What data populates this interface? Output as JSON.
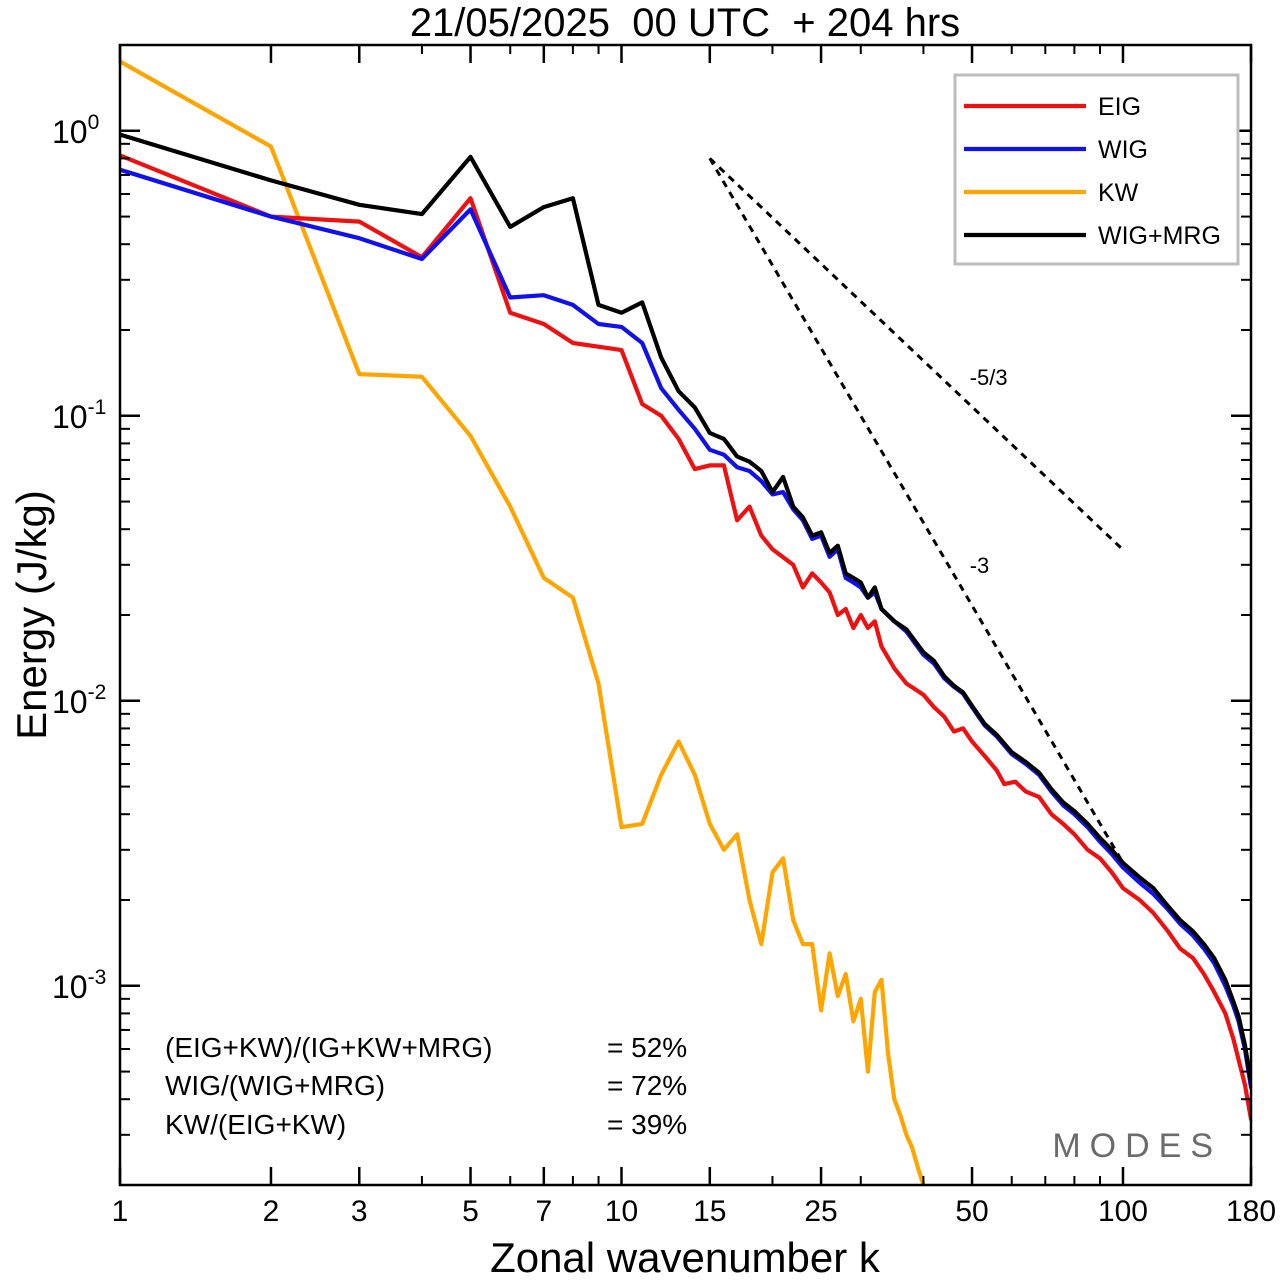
{
  "chart_data": {
    "type": "line",
    "title": "21/05/2025  00 UTC  + 204 hrs",
    "xlabel": "Zonal wavenumber k",
    "ylabel": "Energy (J/kg)",
    "x_scale": "log",
    "y_scale": "log",
    "xlim": [
      1,
      180
    ],
    "ylim": [
      0.0002,
      2.0
    ],
    "x_ticks": [
      {
        "value": 1,
        "label": "1"
      },
      {
        "value": 2,
        "label": "2"
      },
      {
        "value": 3,
        "label": "3"
      },
      {
        "value": 5,
        "label": "5"
      },
      {
        "value": 7,
        "label": "7"
      },
      {
        "value": 10,
        "label": "10"
      },
      {
        "value": 15,
        "label": "15"
      },
      {
        "value": 25,
        "label": "25"
      },
      {
        "value": 50,
        "label": "50"
      },
      {
        "value": 100,
        "label": "100"
      },
      {
        "value": 180,
        "label": "180"
      }
    ],
    "y_ticks": [
      {
        "value": 1.0,
        "base": "10",
        "exp": "0"
      },
      {
        "value": 0.1,
        "base": "10",
        "exp": "-1"
      },
      {
        "value": 0.01,
        "base": "10",
        "exp": "-2"
      },
      {
        "value": 0.001,
        "base": "10",
        "exp": "-3"
      }
    ],
    "grid": false,
    "legend_position": "top-right",
    "series": [
      {
        "name": "EIG",
        "color": "#ee1111",
        "points": [
          [
            1,
            0.82
          ],
          [
            2,
            0.5
          ],
          [
            3,
            0.48
          ],
          [
            4,
            0.36
          ],
          [
            5,
            0.58
          ],
          [
            6,
            0.23
          ],
          [
            7,
            0.21
          ],
          [
            8,
            0.18
          ],
          [
            10,
            0.17
          ],
          [
            11,
            0.11
          ],
          [
            12,
            0.1
          ],
          [
            13,
            0.083
          ],
          [
            14,
            0.065
          ],
          [
            15,
            0.067
          ],
          [
            16,
            0.067
          ],
          [
            17,
            0.043
          ],
          [
            18,
            0.048
          ],
          [
            19,
            0.038
          ],
          [
            20,
            0.034
          ],
          [
            22,
            0.03
          ],
          [
            23,
            0.025
          ],
          [
            24,
            0.028
          ],
          [
            25,
            0.026
          ],
          [
            26,
            0.024
          ],
          [
            27,
            0.02
          ],
          [
            28,
            0.021
          ],
          [
            29,
            0.018
          ],
          [
            30,
            0.02
          ],
          [
            31,
            0.018
          ],
          [
            32,
            0.019
          ],
          [
            33,
            0.0155
          ],
          [
            35,
            0.013
          ],
          [
            37,
            0.0115
          ],
          [
            40,
            0.0105
          ],
          [
            42,
            0.0095
          ],
          [
            44,
            0.0088
          ],
          [
            46,
            0.0078
          ],
          [
            48,
            0.008
          ],
          [
            50,
            0.0072
          ],
          [
            53,
            0.0064
          ],
          [
            56,
            0.0057
          ],
          [
            58,
            0.0051
          ],
          [
            61,
            0.0052
          ],
          [
            64,
            0.0048
          ],
          [
            68,
            0.0046
          ],
          [
            72,
            0.004
          ],
          [
            76,
            0.0037
          ],
          [
            80,
            0.0034
          ],
          [
            85,
            0.003
          ],
          [
            90,
            0.0028
          ],
          [
            95,
            0.0025
          ],
          [
            100,
            0.0022
          ],
          [
            108,
            0.002
          ],
          [
            115,
            0.0018
          ],
          [
            123,
            0.00155
          ],
          [
            130,
            0.00135
          ],
          [
            138,
            0.00125
          ],
          [
            145,
            0.0011
          ],
          [
            152,
            0.00095
          ],
          [
            160,
            0.0008
          ],
          [
            166,
            0.00065
          ],
          [
            170,
            0.00055
          ],
          [
            175,
            0.00045
          ],
          [
            180,
            0.00034
          ]
        ]
      },
      {
        "name": "WIG",
        "color": "#1111ee",
        "points": [
          [
            1,
            0.73
          ],
          [
            2,
            0.5
          ],
          [
            3,
            0.42
          ],
          [
            4,
            0.355
          ],
          [
            5,
            0.53
          ],
          [
            6,
            0.26
          ],
          [
            7,
            0.265
          ],
          [
            8,
            0.245
          ],
          [
            9,
            0.21
          ],
          [
            10,
            0.205
          ],
          [
            11,
            0.18
          ],
          [
            12,
            0.125
          ],
          [
            13,
            0.105
          ],
          [
            14,
            0.09
          ],
          [
            15,
            0.076
          ],
          [
            16,
            0.073
          ],
          [
            17,
            0.066
          ],
          [
            18,
            0.064
          ],
          [
            19,
            0.059
          ],
          [
            20,
            0.053
          ],
          [
            21,
            0.054
          ],
          [
            22,
            0.047
          ],
          [
            23,
            0.043
          ],
          [
            24,
            0.037
          ],
          [
            25,
            0.038
          ],
          [
            26,
            0.032
          ],
          [
            27,
            0.034
          ],
          [
            28,
            0.027
          ],
          [
            29,
            0.026
          ],
          [
            30,
            0.025
          ],
          [
            31,
            0.023
          ],
          [
            32,
            0.024
          ],
          [
            33,
            0.021
          ],
          [
            35,
            0.019
          ],
          [
            37,
            0.0175
          ],
          [
            40,
            0.0145
          ],
          [
            42,
            0.0135
          ],
          [
            44,
            0.012
          ],
          [
            46,
            0.0112
          ],
          [
            48,
            0.0106
          ],
          [
            50,
            0.0095
          ],
          [
            53,
            0.0082
          ],
          [
            56,
            0.0075
          ],
          [
            60,
            0.0065
          ],
          [
            64,
            0.006
          ],
          [
            68,
            0.0055
          ],
          [
            72,
            0.0048
          ],
          [
            76,
            0.0043
          ],
          [
            80,
            0.004
          ],
          [
            85,
            0.0036
          ],
          [
            90,
            0.0032
          ],
          [
            95,
            0.0029
          ],
          [
            100,
            0.0026
          ],
          [
            108,
            0.0023
          ],
          [
            115,
            0.0021
          ],
          [
            123,
            0.00185
          ],
          [
            130,
            0.00165
          ],
          [
            138,
            0.0015
          ],
          [
            145,
            0.00135
          ],
          [
            152,
            0.0012
          ],
          [
            160,
            0.001
          ],
          [
            166,
            0.00085
          ],
          [
            170,
            0.00075
          ],
          [
            175,
            0.0006
          ],
          [
            180,
            0.00044
          ]
        ]
      },
      {
        "name": "KW",
        "color": "#ffa500",
        "points": [
          [
            1,
            1.75
          ],
          [
            2,
            0.88
          ],
          [
            3,
            0.14
          ],
          [
            4,
            0.137
          ],
          [
            5,
            0.085
          ],
          [
            6,
            0.048
          ],
          [
            7,
            0.027
          ],
          [
            8,
            0.023
          ],
          [
            9,
            0.0115
          ],
          [
            10,
            0.0036
          ],
          [
            11,
            0.0037
          ],
          [
            12,
            0.0055
          ],
          [
            13,
            0.0072
          ],
          [
            14,
            0.0055
          ],
          [
            15,
            0.0037
          ],
          [
            16,
            0.003
          ],
          [
            17,
            0.0034
          ],
          [
            18,
            0.002
          ],
          [
            19,
            0.0014
          ],
          [
            20,
            0.0025
          ],
          [
            21,
            0.0028
          ],
          [
            22,
            0.0017
          ],
          [
            23,
            0.0014
          ],
          [
            24,
            0.0014
          ],
          [
            25,
            0.00082
          ],
          [
            26,
            0.0013
          ],
          [
            27,
            0.00092
          ],
          [
            28,
            0.0011
          ],
          [
            29,
            0.00075
          ],
          [
            30,
            0.0009
          ],
          [
            31,
            0.0005
          ],
          [
            32,
            0.00095
          ],
          [
            33,
            0.00105
          ],
          [
            34,
            0.00058
          ],
          [
            35,
            0.0004
          ],
          [
            36,
            0.00035
          ],
          [
            37,
            0.0003
          ],
          [
            38,
            0.00027
          ],
          [
            39,
            0.00023
          ],
          [
            40,
            0.0002
          ]
        ]
      },
      {
        "name": "WIG+MRG",
        "color": "#000000",
        "points": [
          [
            1,
            0.97
          ],
          [
            2,
            0.67
          ],
          [
            3,
            0.55
          ],
          [
            4,
            0.51
          ],
          [
            5,
            0.81
          ],
          [
            6,
            0.46
          ],
          [
            7,
            0.54
          ],
          [
            8,
            0.58
          ],
          [
            9,
            0.245
          ],
          [
            10,
            0.23
          ],
          [
            11,
            0.25
          ],
          [
            12,
            0.16
          ],
          [
            13,
            0.122
          ],
          [
            14,
            0.107
          ],
          [
            15,
            0.087
          ],
          [
            16,
            0.083
          ],
          [
            17,
            0.072
          ],
          [
            18,
            0.069
          ],
          [
            19,
            0.064
          ],
          [
            20,
            0.054
          ],
          [
            21,
            0.061
          ],
          [
            22,
            0.048
          ],
          [
            23,
            0.044
          ],
          [
            24,
            0.038
          ],
          [
            25,
            0.039
          ],
          [
            26,
            0.033
          ],
          [
            27,
            0.035
          ],
          [
            28,
            0.028
          ],
          [
            29,
            0.027
          ],
          [
            30,
            0.026
          ],
          [
            31,
            0.023
          ],
          [
            32,
            0.025
          ],
          [
            33,
            0.021
          ],
          [
            35,
            0.019
          ],
          [
            37,
            0.0178
          ],
          [
            40,
            0.0148
          ],
          [
            42,
            0.0138
          ],
          [
            44,
            0.0122
          ],
          [
            46,
            0.0113
          ],
          [
            48,
            0.0107
          ],
          [
            50,
            0.0096
          ],
          [
            53,
            0.0083
          ],
          [
            56,
            0.0076
          ],
          [
            60,
            0.0066
          ],
          [
            64,
            0.0061
          ],
          [
            68,
            0.0056
          ],
          [
            72,
            0.0049
          ],
          [
            76,
            0.0044
          ],
          [
            80,
            0.0041
          ],
          [
            85,
            0.0037
          ],
          [
            90,
            0.0033
          ],
          [
            95,
            0.003
          ],
          [
            100,
            0.0027
          ],
          [
            108,
            0.0024
          ],
          [
            115,
            0.0022
          ],
          [
            123,
            0.0019
          ],
          [
            130,
            0.0017
          ],
          [
            138,
            0.00155
          ],
          [
            145,
            0.0014
          ],
          [
            152,
            0.00125
          ],
          [
            160,
            0.00105
          ],
          [
            166,
            0.00088
          ],
          [
            170,
            0.00078
          ],
          [
            175,
            0.00062
          ],
          [
            180,
            0.00046
          ]
        ]
      }
    ],
    "reference_lines": [
      {
        "label": "-5/3",
        "slope": -1.6667,
        "start_k": 15,
        "end_k": 100,
        "start_E": 0.8
      },
      {
        "label": "-3",
        "slope": -3.0,
        "start_k": 15,
        "end_k": 100,
        "start_E": 0.8
      }
    ],
    "annotations": [
      {
        "lhs": "(EIG+KW)/(IG+KW+MRG)",
        "rhs": "= 52%"
      },
      {
        "lhs": "WIG/(WIG+MRG)",
        "rhs": "= 72%"
      },
      {
        "lhs": "KW/(EIG+KW)",
        "rhs": "= 39%"
      }
    ],
    "watermark": "MODES"
  }
}
